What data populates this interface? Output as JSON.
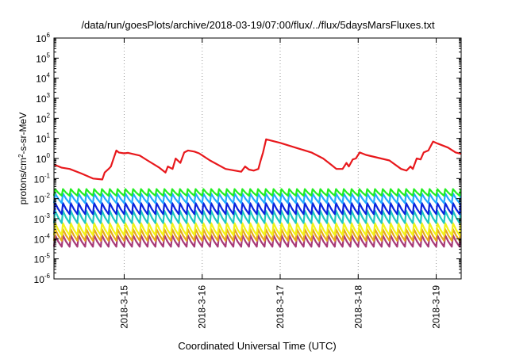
{
  "chart_data": {
    "type": "line",
    "title": "/data/run/goesPlots/archive/2018-03-19/07:00/flux/../flux/5daysMarsFluxes.txt",
    "xlabel": "Coordinated Universal Time (UTC)",
    "ylabel": {
      "base": "protons/cm",
      "sup": "2",
      "rest": "-s-sr-MeV"
    },
    "y_scale": "log",
    "ylim_exponents": [
      -6,
      6
    ],
    "y_ticks": [
      {
        "base": "10",
        "exp": "-6",
        "value": -6
      },
      {
        "base": "10",
        "exp": "-5",
        "value": -5
      },
      {
        "base": "10",
        "exp": "-4",
        "value": -4
      },
      {
        "base": "10",
        "exp": "-3",
        "value": -3
      },
      {
        "base": "10",
        "exp": "-2",
        "value": -2
      },
      {
        "base": "10",
        "exp": "-1",
        "value": -1
      },
      {
        "base": "10",
        "exp": "0",
        "value": 0
      },
      {
        "base": "10",
        "exp": "1",
        "value": 1
      },
      {
        "base": "10",
        "exp": "2",
        "value": 2
      },
      {
        "base": "10",
        "exp": "3",
        "value": 3
      },
      {
        "base": "10",
        "exp": "4",
        "value": 4
      },
      {
        "base": "10",
        "exp": "5",
        "value": 5
      },
      {
        "base": "10",
        "exp": "6",
        "value": 6
      }
    ],
    "xlim_days": [
      14.1,
      19.32
    ],
    "x_ticks": [
      {
        "label": "2018-3-15",
        "day": 15
      },
      {
        "label": "2018-3-16",
        "day": 16
      },
      {
        "label": "2018-3-17",
        "day": 17
      },
      {
        "label": "2018-3-18",
        "day": 18
      },
      {
        "label": "2018-3-19",
        "day": 19
      }
    ],
    "grid": "dotted, at x ticks",
    "series": [
      {
        "color": "#e8181c",
        "x": [
          14.1,
          14.2,
          14.3,
          14.45,
          14.6,
          14.72,
          14.75,
          14.8,
          14.83,
          14.86,
          14.9,
          14.93,
          15.0,
          15.05,
          15.2,
          15.3,
          15.45,
          15.53,
          15.56,
          15.62,
          15.66,
          15.72,
          15.77,
          15.82,
          15.9,
          15.96,
          16.1,
          16.3,
          16.5,
          16.55,
          16.6,
          16.66,
          16.72,
          16.75,
          16.78,
          16.82,
          17.0,
          17.25,
          17.4,
          17.55,
          17.65,
          17.72,
          17.8,
          17.85,
          17.88,
          17.93,
          17.97,
          18.02,
          18.1,
          18.4,
          18.55,
          18.62,
          18.67,
          18.7,
          18.75,
          18.8,
          18.84,
          18.9,
          18.96,
          19.02,
          19.15,
          19.25,
          19.32
        ],
        "y": [
          0.5,
          0.35,
          0.3,
          0.18,
          0.1,
          0.09,
          0.2,
          0.3,
          0.4,
          0.9,
          2.5,
          2.0,
          1.8,
          1.9,
          1.4,
          0.8,
          0.35,
          0.2,
          0.4,
          0.3,
          1.0,
          0.6,
          2.0,
          2.5,
          2.2,
          1.8,
          0.8,
          0.3,
          0.22,
          0.4,
          0.28,
          0.25,
          0.3,
          0.8,
          2.0,
          9.0,
          6.0,
          3.0,
          2.0,
          1.0,
          0.5,
          0.3,
          0.3,
          0.6,
          0.4,
          0.9,
          1.0,
          2.0,
          1.5,
          0.8,
          0.3,
          0.25,
          0.4,
          0.3,
          1.0,
          0.9,
          2.0,
          2.5,
          7.0,
          5.5,
          3.5,
          2.0,
          1.7
        ]
      },
      {
        "color": "#22ee22",
        "x0": 14.1,
        "x1": 19.32,
        "cycle_days": 0.1,
        "peak": 0.03,
        "trough": 0.014
      },
      {
        "color": "#22aaff",
        "x0": 14.1,
        "x1": 19.32,
        "cycle_days": 0.1,
        "peak": 0.018,
        "trough": 0.006
      },
      {
        "color": "#0b24dd",
        "x0": 14.1,
        "x1": 19.32,
        "cycle_days": 0.1,
        "peak": 0.006,
        "trough": 0.0017
      },
      {
        "color": "#1fc8c0",
        "x0": 14.1,
        "x1": 19.32,
        "cycle_days": 0.1,
        "peak": 0.0025,
        "trough": 0.0006
      },
      {
        "color": "#f2f218",
        "x0": 14.1,
        "x1": 19.32,
        "cycle_days": 0.1,
        "peak": 0.0006,
        "trough": 0.00015
      },
      {
        "color": "#e6a61c",
        "x0": 14.1,
        "x1": 19.32,
        "cycle_days": 0.1,
        "peak": 0.0003,
        "trough": 8e-05
      },
      {
        "color": "#a83a78",
        "x0": 14.1,
        "x1": 19.32,
        "cycle_days": 0.1,
        "peak": 0.00015,
        "trough": 4e-05
      }
    ]
  }
}
